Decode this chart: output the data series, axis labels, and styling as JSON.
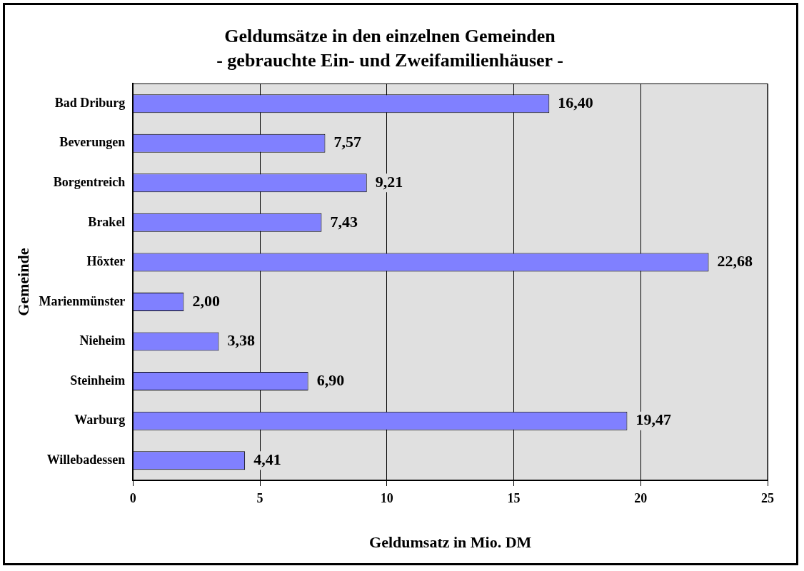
{
  "chart_data": {
    "type": "bar",
    "orientation": "horizontal",
    "title": "Geldumsätze in den einzelnen Gemeinden",
    "subtitle": "- gebrauchte Ein- und Zweifamilienhäuser -",
    "xlabel": "Geldumsatz in Mio. DM",
    "ylabel": "Gemeinde",
    "categories": [
      "Bad Driburg",
      "Beverungen",
      "Borgentreich",
      "Brakel",
      "Höxter",
      "Marienmünster",
      "Nieheim",
      "Steinheim",
      "Warburg",
      "Willebadessen"
    ],
    "values": [
      16.4,
      7.57,
      9.21,
      7.43,
      22.68,
      2.0,
      3.38,
      6.9,
      19.47,
      4.41
    ],
    "value_labels": [
      "16,40",
      "7,57",
      "9,21",
      "7,43",
      "22,68",
      "2,00",
      "3,38",
      "6,90",
      "19,47",
      "4,41"
    ],
    "color": "#8080ff",
    "xlim": [
      0,
      25
    ],
    "xticks": [
      0,
      5,
      10,
      15,
      20,
      25
    ],
    "grid": "x",
    "legend": false
  }
}
